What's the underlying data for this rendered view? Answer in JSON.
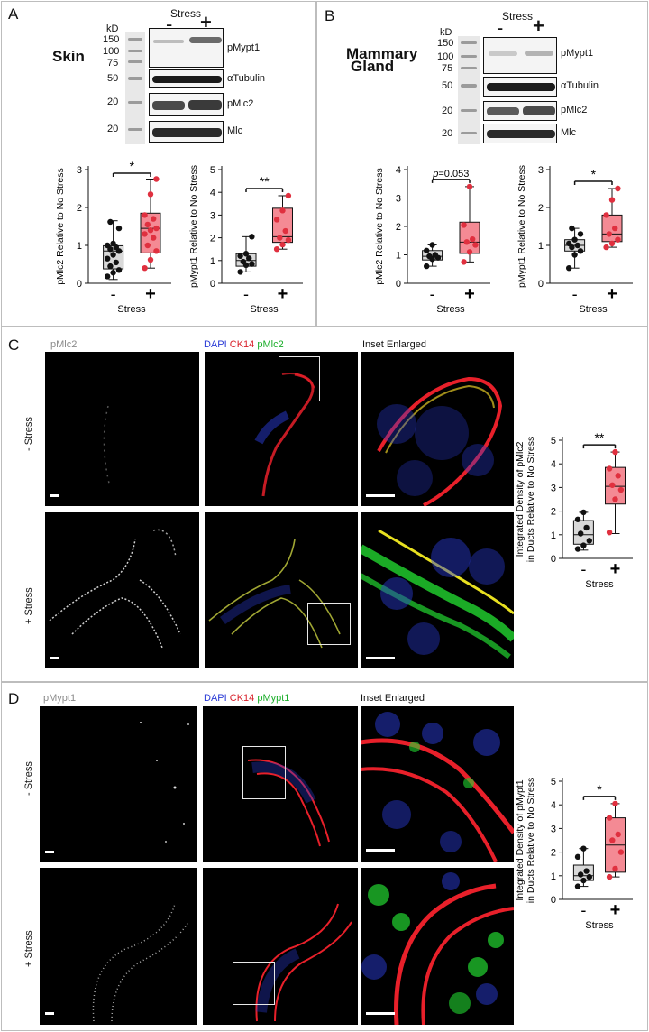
{
  "panel_a": {
    "letter": "A",
    "tissue": "Skin",
    "stress_header": "Stress",
    "lane_minus": "-",
    "lane_plus": "+",
    "kd_label": "kD",
    "marker_values": [
      "150",
      "100",
      "75",
      "50",
      "20",
      "20"
    ],
    "band_labels": [
      "pMypt1",
      "αTubulin",
      "pMlc2",
      "Mlc"
    ]
  },
  "panel_b": {
    "letter": "B",
    "tissue_line1": "Mammary",
    "tissue_line2": "Gland",
    "stress_header": "Stress",
    "lane_minus": "-",
    "lane_plus": "+",
    "kd_label": "kD",
    "marker_values": [
      "150",
      "100",
      "75",
      "50",
      "20",
      "20"
    ],
    "band_labels": [
      "pMypt1",
      "αTubulin",
      "pMlc2",
      "Mlc"
    ]
  },
  "panel_c": {
    "letter": "C",
    "col1": "pMlc2",
    "col2_dapi": "DAPI",
    "col2_ck14": "CK14",
    "col2_marker": "pMlc2",
    "col3": "Inset Enlarged",
    "row1": "- Stress",
    "row2": "+ Stress"
  },
  "panel_d": {
    "letter": "D",
    "col1": "pMypt1",
    "col2_dapi": "DAPI",
    "col2_ck14": "CK14",
    "col2_marker": "pMypt1",
    "col3": "Inset Enlarged",
    "row1": "- Stress",
    "row2": "+ Stress"
  },
  "colors": {
    "control_fill": "#d9d9d9",
    "stress_fill": "#f48a94",
    "stress_point": "#e0303f",
    "control_point": "#111111",
    "dapi": "#2a3bd6",
    "ck14": "#e8202a",
    "marker": "#22d630"
  },
  "chart_data": [
    {
      "id": "a_pmlc2",
      "type": "box",
      "ylabel": "pMlc2 Relative to No Stress",
      "xlabel": "Stress",
      "categories": [
        "-",
        "+"
      ],
      "ylim": [
        0,
        3
      ],
      "yticks": [
        "0",
        "1",
        "2",
        "3"
      ],
      "significance": "*",
      "series": [
        {
          "values": [
            0.18,
            0.28,
            0.35,
            0.45,
            0.55,
            0.65,
            0.75,
            0.85,
            0.9,
            0.95,
            1.0,
            1.05,
            1.45,
            1.62
          ],
          "box": [
            0.1,
            0.38,
            0.85,
            0.99,
            1.65
          ]
        },
        {
          "values": [
            0.4,
            0.62,
            0.85,
            1.0,
            1.2,
            1.3,
            1.4,
            1.45,
            1.55,
            1.7,
            1.8,
            2.35,
            2.75
          ],
          "box": [
            0.4,
            0.8,
            1.45,
            1.85,
            2.75
          ]
        }
      ]
    },
    {
      "id": "a_pmypt1",
      "type": "box",
      "ylabel": "pMypt1 Relative to No Stress",
      "xlabel": "Stress",
      "categories": [
        "-",
        "+"
      ],
      "ylim": [
        0,
        5
      ],
      "yticks": [
        "0",
        "1",
        "2",
        "3",
        "4",
        "5"
      ],
      "significance": "**",
      "series": [
        {
          "values": [
            0.5,
            0.8,
            0.85,
            0.95,
            1.1,
            1.2,
            1.3,
            2.05
          ],
          "box": [
            0.5,
            0.75,
            1.0,
            1.3,
            2.05
          ]
        },
        {
          "values": [
            1.5,
            1.7,
            1.9,
            2.0,
            2.3,
            2.8,
            3.2,
            3.85
          ],
          "box": [
            1.5,
            1.8,
            2.05,
            3.3,
            3.85
          ]
        }
      ]
    },
    {
      "id": "b_pmlc2",
      "type": "box",
      "ylabel": "pMlc2 Relative to No Stress",
      "xlabel": "Stress",
      "categories": [
        "-",
        "+"
      ],
      "ylim": [
        0,
        4
      ],
      "yticks": [
        "0",
        "1",
        "2",
        "3",
        "4"
      ],
      "significance": "p=0.053",
      "sig_italic": "p",
      "sig_rest": "=0.053",
      "series": [
        {
          "values": [
            0.6,
            0.85,
            0.9,
            0.95,
            1.0,
            1.15,
            1.35
          ],
          "box": [
            0.6,
            0.82,
            0.95,
            1.15,
            1.35
          ]
        },
        {
          "values": [
            0.75,
            1.1,
            1.35,
            1.45,
            1.55,
            2.05,
            3.4
          ],
          "box": [
            0.75,
            1.05,
            1.45,
            2.15,
            3.4
          ]
        }
      ]
    },
    {
      "id": "b_pmypt1",
      "type": "box",
      "ylabel": "pMypt1 Relative to No Stress",
      "xlabel": "Stress",
      "categories": [
        "-",
        "+"
      ],
      "ylim": [
        0,
        3
      ],
      "yticks": [
        "0",
        "1",
        "2",
        "3"
      ],
      "significance": "*",
      "series": [
        {
          "values": [
            0.4,
            0.75,
            0.85,
            0.95,
            1.0,
            1.05,
            1.15,
            1.3,
            1.45
          ],
          "box": [
            0.4,
            0.85,
            1.0,
            1.15,
            1.45
          ]
        },
        {
          "values": [
            0.95,
            1.05,
            1.15,
            1.3,
            1.45,
            1.8,
            2.2,
            2.5
          ],
          "box": [
            0.95,
            1.1,
            1.3,
            1.8,
            2.5
          ]
        }
      ]
    },
    {
      "id": "c_density",
      "type": "box",
      "ylabel_line1": "Integrated Density of pMlc2",
      "ylabel_line2": "in Ducts Relative to No Stress",
      "xlabel": "Stress",
      "categories": [
        "-",
        "+"
      ],
      "ylim": [
        0,
        5
      ],
      "yticks": [
        "0",
        "1",
        "2",
        "3",
        "4",
        "5"
      ],
      "significance": "**",
      "series": [
        {
          "values": [
            0.4,
            0.55,
            0.75,
            1.05,
            1.3,
            1.65,
            1.95
          ],
          "box": [
            0.35,
            0.6,
            1.0,
            1.6,
            1.95
          ]
        },
        {
          "values": [
            1.1,
            2.5,
            2.9,
            3.1,
            3.5,
            3.8,
            4.5
          ],
          "box": [
            1.05,
            2.3,
            3.05,
            3.85,
            4.5
          ]
        }
      ]
    },
    {
      "id": "d_density",
      "type": "box",
      "ylabel_line1": "Integrated Density of pMypt1",
      "ylabel_line2": "in Ducts Relative to No Stress",
      "xlabel": "Stress",
      "categories": [
        "-",
        "+"
      ],
      "ylim": [
        0,
        5
      ],
      "yticks": [
        "0",
        "1",
        "2",
        "3",
        "4",
        "5"
      ],
      "significance": "*",
      "series": [
        {
          "values": [
            0.55,
            0.8,
            0.95,
            1.05,
            1.2,
            1.8,
            2.15
          ],
          "box": [
            0.55,
            0.8,
            1.0,
            1.45,
            2.15
          ]
        },
        {
          "values": [
            0.95,
            1.3,
            2.0,
            2.5,
            2.75,
            3.45,
            4.05
          ],
          "box": [
            0.95,
            1.15,
            2.3,
            3.45,
            4.05
          ]
        }
      ]
    }
  ]
}
